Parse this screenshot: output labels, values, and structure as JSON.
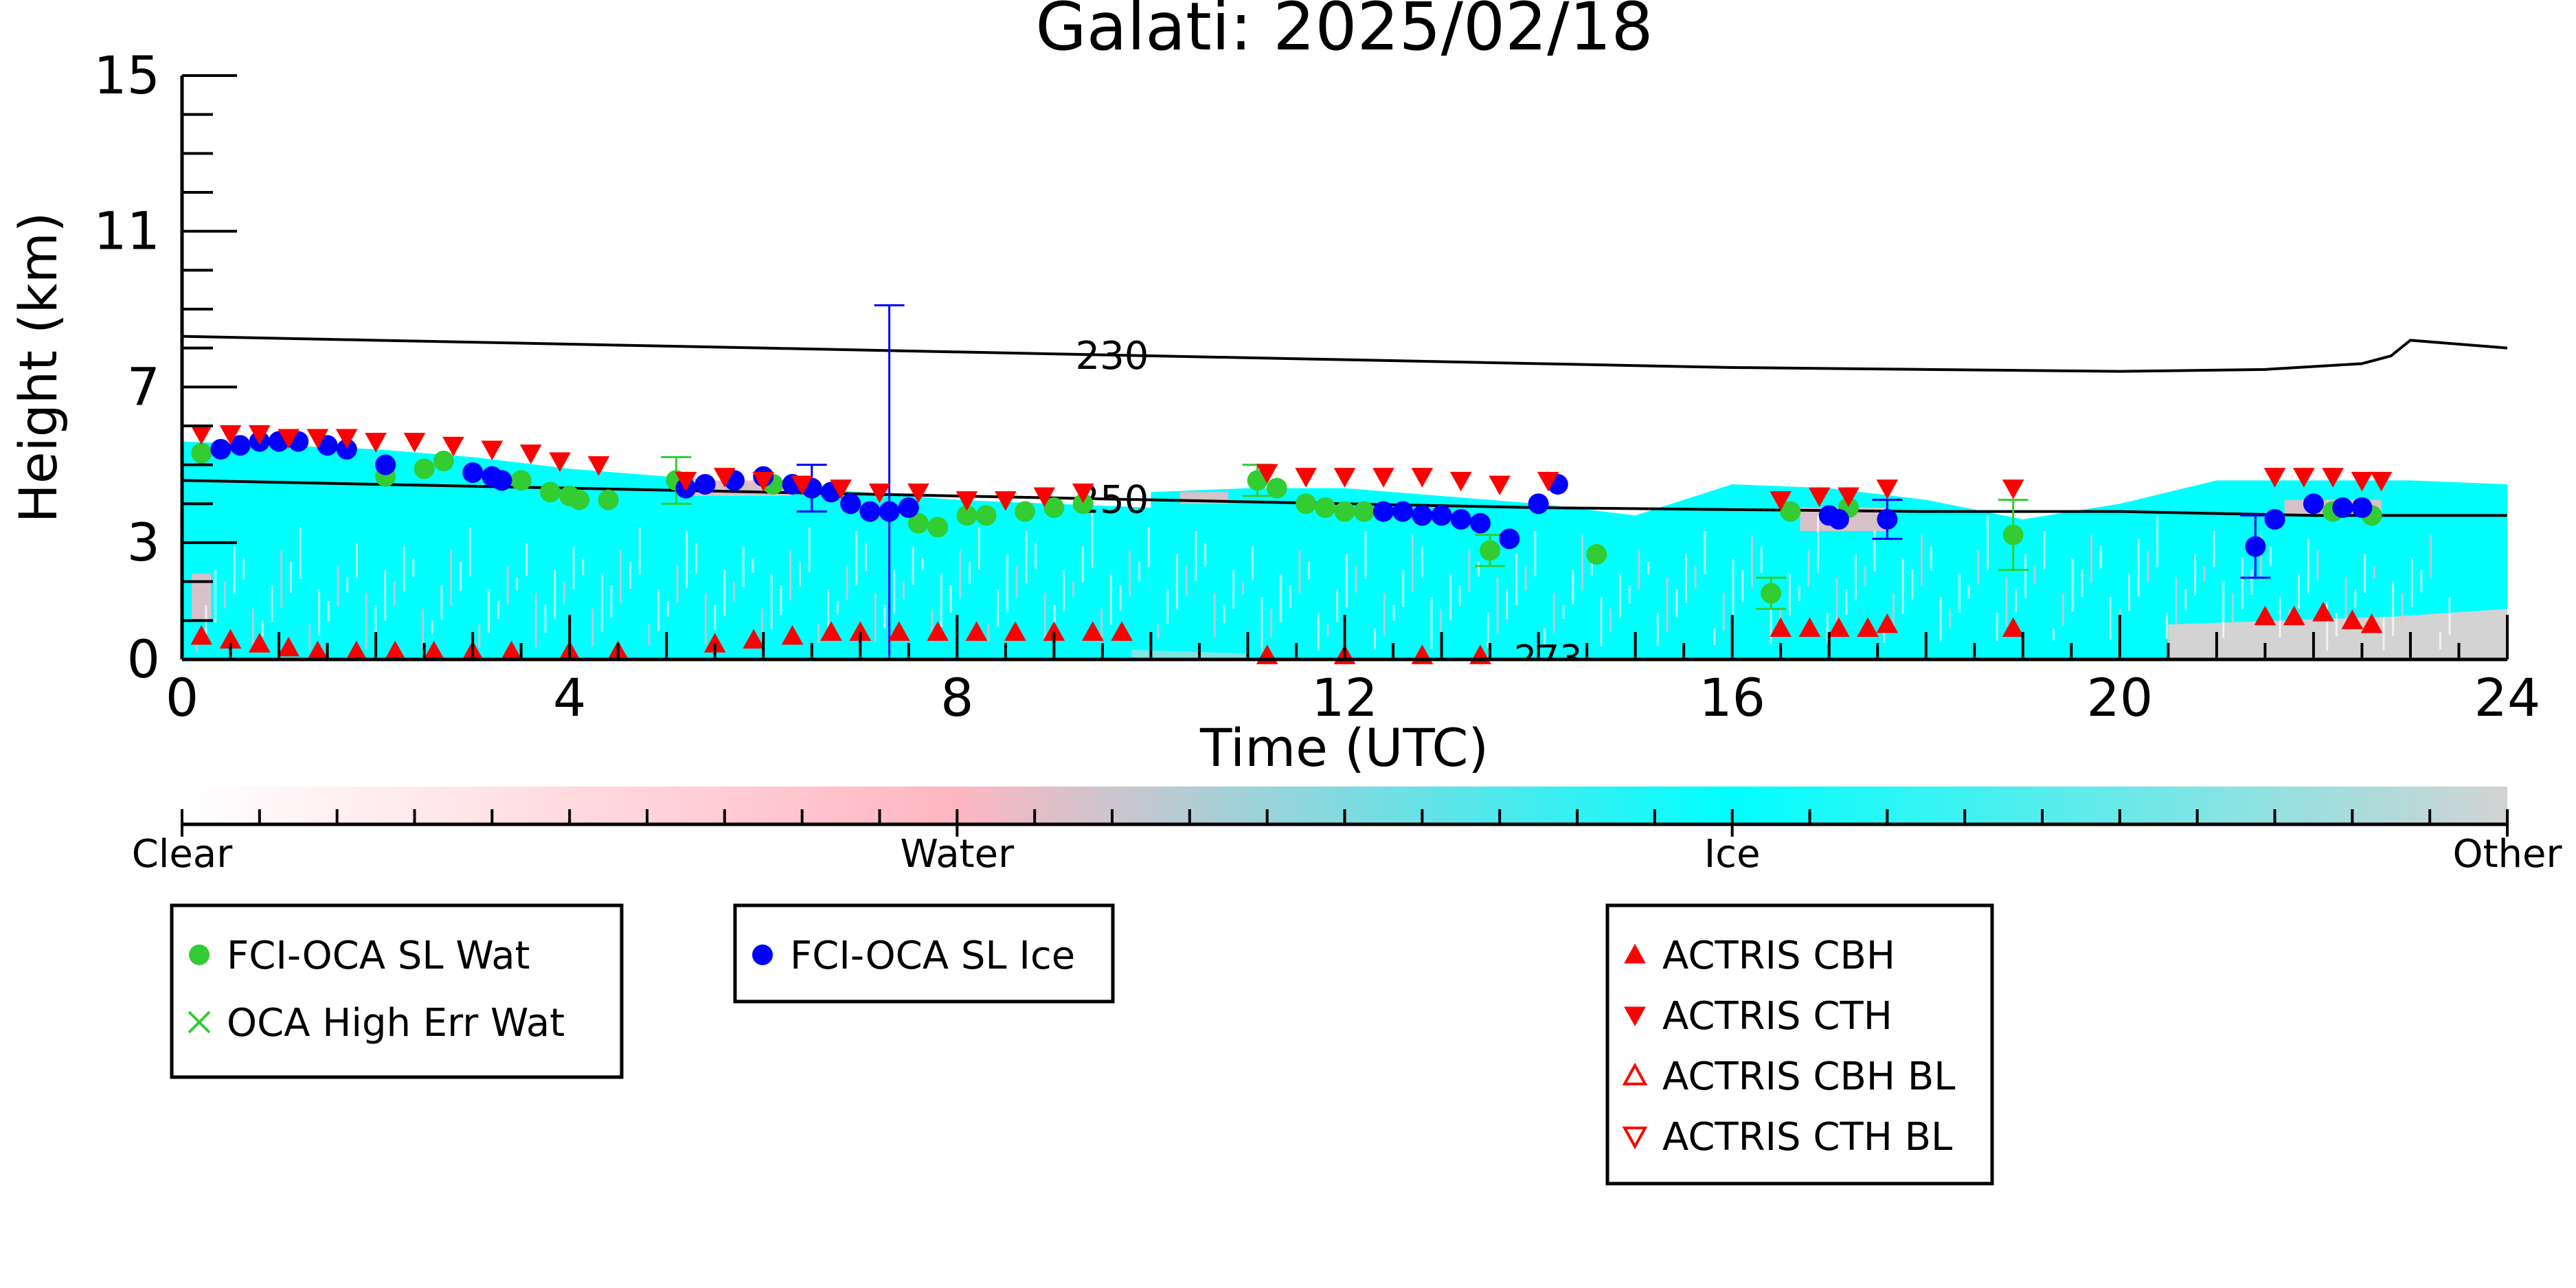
{
  "chart_data": {
    "type": "scatter",
    "title": "Galati: 2025/02/18",
    "xlabel": "Time (UTC)",
    "ylabel": "Height (km)",
    "xlim": [
      0,
      24
    ],
    "ylim": [
      0,
      15
    ],
    "x_ticks": [
      0,
      4,
      8,
      12,
      16,
      20,
      24
    ],
    "y_ticks": [
      0,
      3,
      7,
      11,
      15
    ],
    "background_mask": {
      "classes": [
        "Clear",
        "Water",
        "Ice",
        "Other"
      ],
      "colors": {
        "Clear": "#ffffff",
        "Water": "#ffb6c1",
        "Ice": "#00ffff",
        "Other": "#d3d3d3"
      },
      "ice_regions": [
        {
          "x": [
            0,
            10
          ],
          "top": [
            5.6,
            5.5,
            5.4,
            5.2,
            4.9,
            4.7,
            4.5,
            4.3,
            4.1,
            4.0,
            3.9
          ]
        },
        {
          "x": [
            10,
            24
          ],
          "top": [
            4.3,
            4.4,
            4.4,
            4.2,
            4.0,
            3.7,
            4.5,
            4.4,
            4.1,
            3.6,
            4.0,
            4.6,
            4.6,
            4.6,
            4.5
          ]
        }
      ],
      "other_regions": [
        {
          "x": [
            20.5,
            24
          ],
          "top": [
            0.9,
            1.0,
            1.1,
            1.3
          ]
        }
      ]
    },
    "contours": [
      {
        "label": "230",
        "x": [
          0,
          2,
          4,
          6,
          8,
          10,
          12,
          14,
          16,
          18,
          20,
          21.5,
          22.5,
          22.8,
          23.0,
          23.5,
          24
        ],
        "y": [
          8.3,
          8.2,
          8.1,
          8.0,
          7.9,
          7.8,
          7.7,
          7.6,
          7.5,
          7.45,
          7.4,
          7.45,
          7.6,
          7.8,
          8.2,
          8.1,
          8.0
        ]
      },
      {
        "label": "250",
        "x": [
          0,
          2,
          4,
          6,
          8,
          10,
          12,
          14,
          16,
          18,
          20,
          22,
          24
        ],
        "y": [
          4.6,
          4.5,
          4.4,
          4.3,
          4.2,
          4.1,
          4.0,
          3.9,
          3.85,
          3.8,
          3.8,
          3.7,
          3.7
        ]
      },
      {
        "label": "273",
        "x": [],
        "y": []
      }
    ],
    "series": [
      {
        "name": "FCI-OCA SL Wat",
        "color": "#33cc33",
        "marker": "circle",
        "points": [
          {
            "x": 0.2,
            "y": 5.3
          },
          {
            "x": 2.1,
            "y": 4.7
          },
          {
            "x": 2.5,
            "y": 4.9
          },
          {
            "x": 2.7,
            "y": 5.1
          },
          {
            "x": 3.5,
            "y": 4.6
          },
          {
            "x": 3.8,
            "y": 4.3
          },
          {
            "x": 4.0,
            "y": 4.2
          },
          {
            "x": 4.1,
            "y": 4.1
          },
          {
            "x": 4.4,
            "y": 4.1
          },
          {
            "x": 5.1,
            "y": 4.6,
            "err": 0.6
          },
          {
            "x": 6.1,
            "y": 4.5
          },
          {
            "x": 7.6,
            "y": 3.5
          },
          {
            "x": 7.8,
            "y": 3.4
          },
          {
            "x": 8.1,
            "y": 3.7
          },
          {
            "x": 8.3,
            "y": 3.7
          },
          {
            "x": 8.7,
            "y": 3.8
          },
          {
            "x": 9.0,
            "y": 3.9
          },
          {
            "x": 9.3,
            "y": 4.0
          },
          {
            "x": 11.1,
            "y": 4.6,
            "err": 0.4
          },
          {
            "x": 11.3,
            "y": 4.4
          },
          {
            "x": 11.6,
            "y": 4.0
          },
          {
            "x": 11.8,
            "y": 3.9
          },
          {
            "x": 12.0,
            "y": 3.8
          },
          {
            "x": 12.2,
            "y": 3.8
          },
          {
            "x": 13.5,
            "y": 2.8,
            "err": 0.4
          },
          {
            "x": 14.6,
            "y": 2.7
          },
          {
            "x": 16.4,
            "y": 1.7,
            "err": 0.4
          },
          {
            "x": 16.6,
            "y": 3.8
          },
          {
            "x": 17.2,
            "y": 3.9
          },
          {
            "x": 18.9,
            "y": 3.2,
            "err": 0.9
          },
          {
            "x": 22.2,
            "y": 3.8
          },
          {
            "x": 22.6,
            "y": 3.7
          }
        ]
      },
      {
        "name": "OCA High Err Wat",
        "color": "#33cc33",
        "marker": "x",
        "points": []
      },
      {
        "name": "FCI-OCA SL Ice",
        "color": "#0000ff",
        "marker": "circle",
        "points": [
          {
            "x": 0.4,
            "y": 5.4
          },
          {
            "x": 0.6,
            "y": 5.5
          },
          {
            "x": 0.8,
            "y": 5.6
          },
          {
            "x": 1.0,
            "y": 5.6
          },
          {
            "x": 1.2,
            "y": 5.6
          },
          {
            "x": 1.5,
            "y": 5.5
          },
          {
            "x": 1.7,
            "y": 5.4
          },
          {
            "x": 2.1,
            "y": 5.0
          },
          {
            "x": 3.0,
            "y": 4.8
          },
          {
            "x": 3.2,
            "y": 4.7
          },
          {
            "x": 3.3,
            "y": 4.6
          },
          {
            "x": 5.2,
            "y": 4.4
          },
          {
            "x": 5.4,
            "y": 4.5
          },
          {
            "x": 5.7,
            "y": 4.6
          },
          {
            "x": 6.0,
            "y": 4.7
          },
          {
            "x": 6.3,
            "y": 4.5
          },
          {
            "x": 6.5,
            "y": 4.4,
            "err": 0.6
          },
          {
            "x": 6.7,
            "y": 4.3
          },
          {
            "x": 6.9,
            "y": 4.0
          },
          {
            "x": 7.1,
            "y": 3.8
          },
          {
            "x": 7.3,
            "y": 3.8,
            "err": 5.3
          },
          {
            "x": 7.5,
            "y": 3.9
          },
          {
            "x": 12.4,
            "y": 3.8
          },
          {
            "x": 12.6,
            "y": 3.8
          },
          {
            "x": 12.8,
            "y": 3.7
          },
          {
            "x": 13.0,
            "y": 3.7
          },
          {
            "x": 13.2,
            "y": 3.6
          },
          {
            "x": 13.4,
            "y": 3.5
          },
          {
            "x": 13.7,
            "y": 3.1
          },
          {
            "x": 14.0,
            "y": 4.0
          },
          {
            "x": 14.2,
            "y": 4.5
          },
          {
            "x": 17.0,
            "y": 3.7
          },
          {
            "x": 17.1,
            "y": 3.6
          },
          {
            "x": 17.6,
            "y": 3.6,
            "err": 0.5
          },
          {
            "x": 21.4,
            "y": 2.9,
            "err": 0.8
          },
          {
            "x": 21.6,
            "y": 3.6
          },
          {
            "x": 22.0,
            "y": 4.0
          },
          {
            "x": 22.3,
            "y": 3.9
          },
          {
            "x": 22.5,
            "y": 3.9
          }
        ]
      },
      {
        "name": "ACTRIS CBH",
        "color": "#ff0000",
        "marker": "triangle-up",
        "points": [
          {
            "x": 0.2,
            "y": 0.6
          },
          {
            "x": 0.5,
            "y": 0.5
          },
          {
            "x": 0.8,
            "y": 0.4
          },
          {
            "x": 1.1,
            "y": 0.3
          },
          {
            "x": 1.4,
            "y": 0.2
          },
          {
            "x": 1.8,
            "y": 0.2
          },
          {
            "x": 2.2,
            "y": 0.2
          },
          {
            "x": 2.6,
            "y": 0.2
          },
          {
            "x": 3.0,
            "y": 0.2
          },
          {
            "x": 3.4,
            "y": 0.2
          },
          {
            "x": 4.0,
            "y": 0.2
          },
          {
            "x": 4.5,
            "y": 0.2
          },
          {
            "x": 5.5,
            "y": 0.4
          },
          {
            "x": 5.9,
            "y": 0.5
          },
          {
            "x": 6.3,
            "y": 0.6
          },
          {
            "x": 6.7,
            "y": 0.7
          },
          {
            "x": 7.0,
            "y": 0.7
          },
          {
            "x": 7.4,
            "y": 0.7
          },
          {
            "x": 7.8,
            "y": 0.7
          },
          {
            "x": 8.2,
            "y": 0.7
          },
          {
            "x": 8.6,
            "y": 0.7
          },
          {
            "x": 9.0,
            "y": 0.7
          },
          {
            "x": 9.4,
            "y": 0.7
          },
          {
            "x": 9.7,
            "y": 0.7
          },
          {
            "x": 11.2,
            "y": 0.1
          },
          {
            "x": 12.0,
            "y": 0.1
          },
          {
            "x": 12.8,
            "y": 0.1
          },
          {
            "x": 13.4,
            "y": 0.1
          },
          {
            "x": 16.5,
            "y": 0.8
          },
          {
            "x": 16.8,
            "y": 0.8
          },
          {
            "x": 17.1,
            "y": 0.8
          },
          {
            "x": 17.4,
            "y": 0.8
          },
          {
            "x": 17.6,
            "y": 0.9
          },
          {
            "x": 18.9,
            "y": 0.8
          },
          {
            "x": 21.5,
            "y": 1.1
          },
          {
            "x": 21.8,
            "y": 1.1
          },
          {
            "x": 22.1,
            "y": 1.2
          },
          {
            "x": 22.4,
            "y": 1.0
          },
          {
            "x": 22.6,
            "y": 0.9
          }
        ]
      },
      {
        "name": "ACTRIS CTH",
        "color": "#ff0000",
        "marker": "triangle-down",
        "points": [
          {
            "x": 0.2,
            "y": 5.8
          },
          {
            "x": 0.5,
            "y": 5.8
          },
          {
            "x": 0.8,
            "y": 5.8
          },
          {
            "x": 1.1,
            "y": 5.7
          },
          {
            "x": 1.4,
            "y": 5.7
          },
          {
            "x": 1.7,
            "y": 5.7
          },
          {
            "x": 2.0,
            "y": 5.6
          },
          {
            "x": 2.4,
            "y": 5.6
          },
          {
            "x": 2.8,
            "y": 5.5
          },
          {
            "x": 3.2,
            "y": 5.4
          },
          {
            "x": 3.6,
            "y": 5.3
          },
          {
            "x": 3.9,
            "y": 5.1
          },
          {
            "x": 4.3,
            "y": 5.0
          },
          {
            "x": 5.2,
            "y": 4.6
          },
          {
            "x": 5.6,
            "y": 4.7
          },
          {
            "x": 6.0,
            "y": 4.6
          },
          {
            "x": 6.4,
            "y": 4.5
          },
          {
            "x": 6.8,
            "y": 4.4
          },
          {
            "x": 7.2,
            "y": 4.3
          },
          {
            "x": 7.6,
            "y": 4.3
          },
          {
            "x": 8.1,
            "y": 4.1
          },
          {
            "x": 8.5,
            "y": 4.1
          },
          {
            "x": 8.9,
            "y": 4.2
          },
          {
            "x": 9.3,
            "y": 4.3
          },
          {
            "x": 11.2,
            "y": 4.8
          },
          {
            "x": 11.6,
            "y": 4.7
          },
          {
            "x": 12.0,
            "y": 4.7
          },
          {
            "x": 12.4,
            "y": 4.7
          },
          {
            "x": 12.8,
            "y": 4.7
          },
          {
            "x": 13.2,
            "y": 4.6
          },
          {
            "x": 13.6,
            "y": 4.5
          },
          {
            "x": 14.1,
            "y": 4.6
          },
          {
            "x": 16.5,
            "y": 4.1
          },
          {
            "x": 16.9,
            "y": 4.2
          },
          {
            "x": 17.2,
            "y": 4.2
          },
          {
            "x": 17.6,
            "y": 4.4
          },
          {
            "x": 18.9,
            "y": 4.4
          },
          {
            "x": 21.6,
            "y": 4.7
          },
          {
            "x": 21.9,
            "y": 4.7
          },
          {
            "x": 22.2,
            "y": 4.7
          },
          {
            "x": 22.5,
            "y": 4.6
          },
          {
            "x": 22.7,
            "y": 4.6
          }
        ]
      },
      {
        "name": "ACTRIS CBH BL",
        "color": "#ff0000",
        "marker": "triangle-up-open",
        "points": []
      },
      {
        "name": "ACTRIS CTH BL",
        "color": "#ff0000",
        "marker": "triangle-down-open",
        "points": []
      }
    ],
    "colorbar": {
      "labels": [
        "Clear",
        "Water",
        "Ice",
        "Other"
      ],
      "colors": [
        "#ffffff",
        "#ffb6c1",
        "#00ffff",
        "#d3d3d3"
      ]
    },
    "legends": [
      {
        "entries": [
          "FCI-OCA SL Wat",
          "OCA High Err Wat"
        ]
      },
      {
        "entries": [
          "FCI-OCA SL Ice"
        ]
      },
      {
        "entries": [
          "ACTRIS CBH",
          "ACTRIS CTH",
          "ACTRIS CBH BL",
          "ACTRIS CTH BL"
        ]
      }
    ]
  }
}
